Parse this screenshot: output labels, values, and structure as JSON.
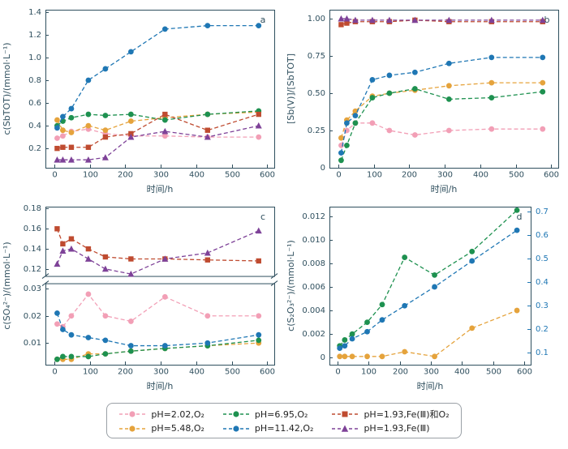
{
  "style": {
    "axis_color": "#2F4F5E",
    "background": "#ffffff",
    "right_axis_blue": "#1F77B4",
    "series_colors": {
      "pink": "#F29FB6",
      "orange": "#E5A33C",
      "green": "#1E9150",
      "blue": "#1F77B4",
      "red": "#BF4B30",
      "purple": "#7E4298"
    }
  },
  "legend": {
    "items": [
      {
        "label": "pH=2.02,O₂",
        "color": "#F29FB6",
        "marker": "circle"
      },
      {
        "label": "pH=6.95,O₂",
        "color": "#1E9150",
        "marker": "circle"
      },
      {
        "label": "pH=1.93,Fe(Ⅲ)和O₂",
        "color": "#BF4B30",
        "marker": "square"
      },
      {
        "label": "pH=5.48,O₂",
        "color": "#E5A33C",
        "marker": "circle"
      },
      {
        "label": "pH=11.42,O₂",
        "color": "#1F77B4",
        "marker": "circle"
      },
      {
        "label": "pH=1.93,Fe(Ⅲ)",
        "color": "#7E4298",
        "marker": "triangle"
      }
    ]
  },
  "chart_data": [
    {
      "type": "line",
      "panel": "a",
      "xlabel": "时间/h",
      "ylabel": "c(SbTOT)/(mmol·L⁻¹)",
      "xlim": [
        -25,
        620
      ],
      "xticks": [
        0,
        100,
        200,
        300,
        400,
        500,
        600
      ],
      "ylim": [
        0.03,
        1.42
      ],
      "ytick_vals": [
        0.2,
        0.4,
        0.6,
        0.8,
        1.0,
        1.2,
        1.4
      ],
      "ytick_labels": [
        "0.2",
        "0.4",
        "0.6",
        "0.8",
        "1.0",
        "1.2",
        "1.4"
      ],
      "x": [
        8,
        24,
        48,
        96,
        144,
        216,
        312,
        432,
        576
      ],
      "series": [
        {
          "name": "pH=2.02,O₂",
          "color": "#F29FB6",
          "marker": "circle",
          "values": [
            0.29,
            0.31,
            0.35,
            0.37,
            0.33,
            0.31,
            0.31,
            0.3,
            0.3
          ]
        },
        {
          "name": "pH=5.48,O₂",
          "color": "#E5A33C",
          "marker": "circle",
          "values": [
            0.45,
            0.36,
            0.34,
            0.4,
            0.36,
            0.44,
            0.47,
            0.5,
            0.52
          ]
        },
        {
          "name": "pH=6.95,O₂",
          "color": "#1E9150",
          "marker": "circle",
          "values": [
            0.4,
            0.44,
            0.47,
            0.5,
            0.49,
            0.5,
            0.45,
            0.5,
            0.53
          ]
        },
        {
          "name": "pH=11.42,O₂",
          "color": "#1F77B4",
          "marker": "circle",
          "values": [
            0.38,
            0.48,
            0.55,
            0.8,
            0.9,
            1.05,
            1.25,
            1.28,
            1.28
          ]
        },
        {
          "name": "pH=1.93,Fe(Ⅲ)和O₂",
          "color": "#BF4B30",
          "marker": "square",
          "values": [
            0.2,
            0.21,
            0.21,
            0.21,
            0.3,
            0.33,
            0.5,
            0.36,
            0.5
          ]
        },
        {
          "name": "pH=1.93,Fe(Ⅲ)",
          "color": "#7E4298",
          "marker": "triangle",
          "values": [
            0.1,
            0.1,
            0.1,
            0.1,
            0.12,
            0.3,
            0.35,
            0.3,
            0.4
          ]
        }
      ]
    },
    {
      "type": "line",
      "panel": "b",
      "xlabel": "时间/h",
      "ylabel": "[Sb(V)]/[SbTOT]",
      "xlim": [
        -25,
        620
      ],
      "xticks": [
        0,
        100,
        200,
        300,
        400,
        500,
        600
      ],
      "ylim": [
        0,
        1.06
      ],
      "ytick_vals": [
        0,
        0.25,
        0.5,
        0.75,
        1.0
      ],
      "ytick_labels": [
        "0",
        "0.25",
        "0.50",
        "0.75",
        "1.00"
      ],
      "x": [
        8,
        24,
        48,
        96,
        144,
        216,
        312,
        432,
        576
      ],
      "series": [
        {
          "name": "pH=2.02,O₂",
          "color": "#F29FB6",
          "marker": "circle",
          "values": [
            0.15,
            0.25,
            0.3,
            0.3,
            0.25,
            0.22,
            0.25,
            0.26,
            0.26
          ]
        },
        {
          "name": "pH=5.48,O₂",
          "color": "#E5A33C",
          "marker": "circle",
          "values": [
            0.2,
            0.32,
            0.38,
            0.48,
            0.5,
            0.52,
            0.55,
            0.57,
            0.57
          ]
        },
        {
          "name": "pH=6.95,O₂",
          "color": "#1E9150",
          "marker": "circle",
          "values": [
            0.05,
            0.15,
            0.3,
            0.47,
            0.5,
            0.53,
            0.46,
            0.47,
            0.51
          ]
        },
        {
          "name": "pH=11.42,O₂",
          "color": "#1F77B4",
          "marker": "circle",
          "values": [
            0.1,
            0.3,
            0.35,
            0.59,
            0.62,
            0.64,
            0.7,
            0.74,
            0.74
          ]
        },
        {
          "name": "pH=1.93,Fe(Ⅲ)和O₂",
          "color": "#BF4B30",
          "marker": "square",
          "values": [
            0.96,
            0.97,
            0.98,
            0.98,
            0.98,
            0.99,
            0.98,
            0.98,
            0.98
          ]
        },
        {
          "name": "pH=1.93,Fe(Ⅲ)",
          "color": "#7E4298",
          "marker": "triangle",
          "values": [
            1.0,
            1.0,
            0.99,
            0.99,
            0.99,
            0.99,
            0.99,
            0.99,
            0.99
          ]
        }
      ]
    },
    {
      "type": "line",
      "panel": "c",
      "xlabel": "时间/h",
      "ylabel": "c(SO₄²⁻)/(mmol·L⁻¹)",
      "xlim": [
        -25,
        620
      ],
      "xticks": [
        0,
        100,
        200,
        300,
        400,
        500,
        600
      ],
      "segments": [
        {
          "from": 0.002,
          "to": 0.032,
          "frac": 0.54
        },
        {
          "from": 0.113,
          "to": 0.182,
          "frac": 0.46
        }
      ],
      "ytick_vals": [
        0.01,
        0.02,
        0.03,
        0.12,
        0.14,
        0.16,
        0.18
      ],
      "ytick_labels": [
        "0.01",
        "0.02",
        "0.03",
        "0.12",
        "0.14",
        "0.16",
        "0.18"
      ],
      "x": [
        8,
        24,
        48,
        96,
        144,
        216,
        312,
        432,
        576
      ],
      "series": [
        {
          "name": "pH=2.02,O₂",
          "color": "#F29FB6",
          "marker": "circle",
          "values": [
            0.017,
            0.016,
            0.02,
            0.028,
            0.02,
            0.018,
            0.027,
            0.02,
            0.02
          ]
        },
        {
          "name": "pH=5.48,O₂",
          "color": "#E5A33C",
          "marker": "circle",
          "values": [
            0.004,
            0.004,
            0.004,
            0.006,
            0.006,
            0.007,
            0.008,
            0.009,
            0.01
          ]
        },
        {
          "name": "pH=6.95,O₂",
          "color": "#1E9150",
          "marker": "circle",
          "values": [
            0.004,
            0.005,
            0.005,
            0.005,
            0.006,
            0.007,
            0.008,
            0.009,
            0.011
          ]
        },
        {
          "name": "pH=11.42,O₂",
          "color": "#1F77B4",
          "marker": "circle",
          "values": [
            0.021,
            0.015,
            0.013,
            0.012,
            0.011,
            0.009,
            0.009,
            0.01,
            0.013
          ]
        },
        {
          "name": "pH=1.93,Fe(Ⅲ)和O₂",
          "color": "#BF4B30",
          "marker": "square",
          "values": [
            0.16,
            0.145,
            0.15,
            0.14,
            0.132,
            0.13,
            0.13,
            0.129,
            0.128
          ]
        },
        {
          "name": "pH=1.93,Fe(Ⅲ)",
          "color": "#7E4298",
          "marker": "triangle",
          "values": [
            0.125,
            0.138,
            0.14,
            0.13,
            0.12,
            0.115,
            0.13,
            0.136,
            0.158
          ]
        }
      ]
    },
    {
      "type": "line",
      "panel": "d",
      "xlabel": "时间/h",
      "ylabel": "c(S₂O₃²⁻)/(mmol·L⁻¹)",
      "xlim": [
        -25,
        620
      ],
      "xticks": [
        0,
        100,
        200,
        300,
        400,
        500,
        600
      ],
      "ylim": [
        -0.0006,
        0.0128
      ],
      "ytick_vals": [
        0,
        0.002,
        0.004,
        0.006,
        0.008,
        0.01,
        0.012
      ],
      "ytick_labels": [
        "0",
        "0.002",
        "0.004",
        "0.006",
        "0.008",
        "0.010",
        "0.012"
      ],
      "right_axis": {
        "color": "#1F77B4",
        "lim": [
          0.05,
          0.72
        ],
        "tick_vals": [
          0.1,
          0.2,
          0.3,
          0.4,
          0.5,
          0.6,
          0.7
        ],
        "tick_labels": [
          "0.1",
          "0.2",
          "0.3",
          "0.4",
          "0.5",
          "0.6",
          "0.7"
        ]
      },
      "x": [
        8,
        24,
        48,
        96,
        144,
        216,
        312,
        432,
        576
      ],
      "series": [
        {
          "name": "pH=5.48,O₂",
          "color": "#E5A33C",
          "marker": "circle",
          "values": [
            0.0001,
            0.0001,
            0.0001,
            0.0001,
            0.0001,
            0.0005,
            0.0001,
            0.0025,
            0.004
          ]
        },
        {
          "name": "pH=6.95,O₂",
          "color": "#1E9150",
          "marker": "circle",
          "values": [
            0.001,
            0.0015,
            0.002,
            0.003,
            0.0045,
            0.0085,
            0.007,
            0.009,
            0.0125
          ]
        },
        {
          "name": "pH=11.42,O₂",
          "color": "#1F77B4",
          "marker": "circle",
          "axis": "right",
          "values": [
            0.12,
            0.13,
            0.16,
            0.19,
            0.24,
            0.3,
            0.38,
            0.49,
            0.62
          ]
        }
      ]
    }
  ]
}
